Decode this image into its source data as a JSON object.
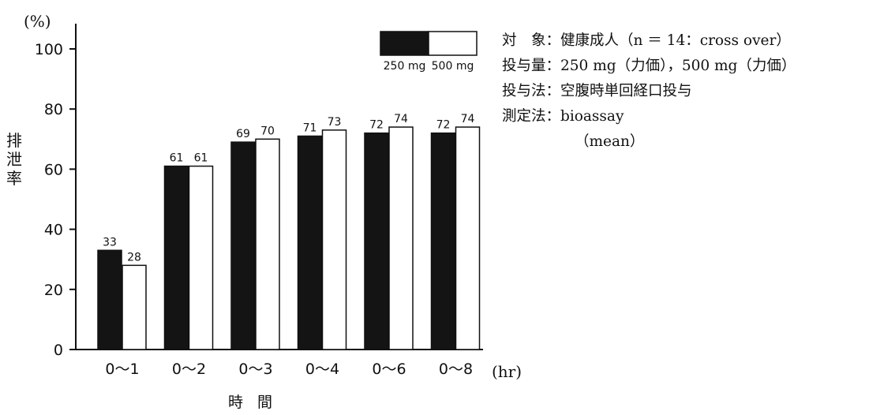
{
  "chart_data": {
    "type": "bar",
    "categories": [
      "0～1",
      "0～2",
      "0～3",
      "0～4",
      "0～6",
      "0～8"
    ],
    "series": [
      {
        "name": "250 mg",
        "values": [
          33,
          61,
          69,
          71,
          72,
          72
        ],
        "color": "#111111"
      },
      {
        "name": "500 mg",
        "values": [
          28,
          61,
          70,
          73,
          74,
          74
        ],
        "color": "#ffffff"
      }
    ],
    "title": "",
    "ylabel": "排泄率",
    "ylabel_unit": "(%)",
    "xlabel": "時間",
    "xlabel_unit": "(hr)",
    "yticks": [
      0,
      20,
      40,
      60,
      80,
      100
    ],
    "ylim": [
      0,
      100
    ],
    "grid": false,
    "legend": "top-right"
  },
  "info": {
    "subject": "対　象：健康成人（n ＝ 14：cross over）",
    "dose": "投与量：250 mg（力価），500 mg（力価）",
    "method": "投与法：空腹時単回経口投与",
    "assay": "測定法：bioassay",
    "note": "（mean）"
  }
}
